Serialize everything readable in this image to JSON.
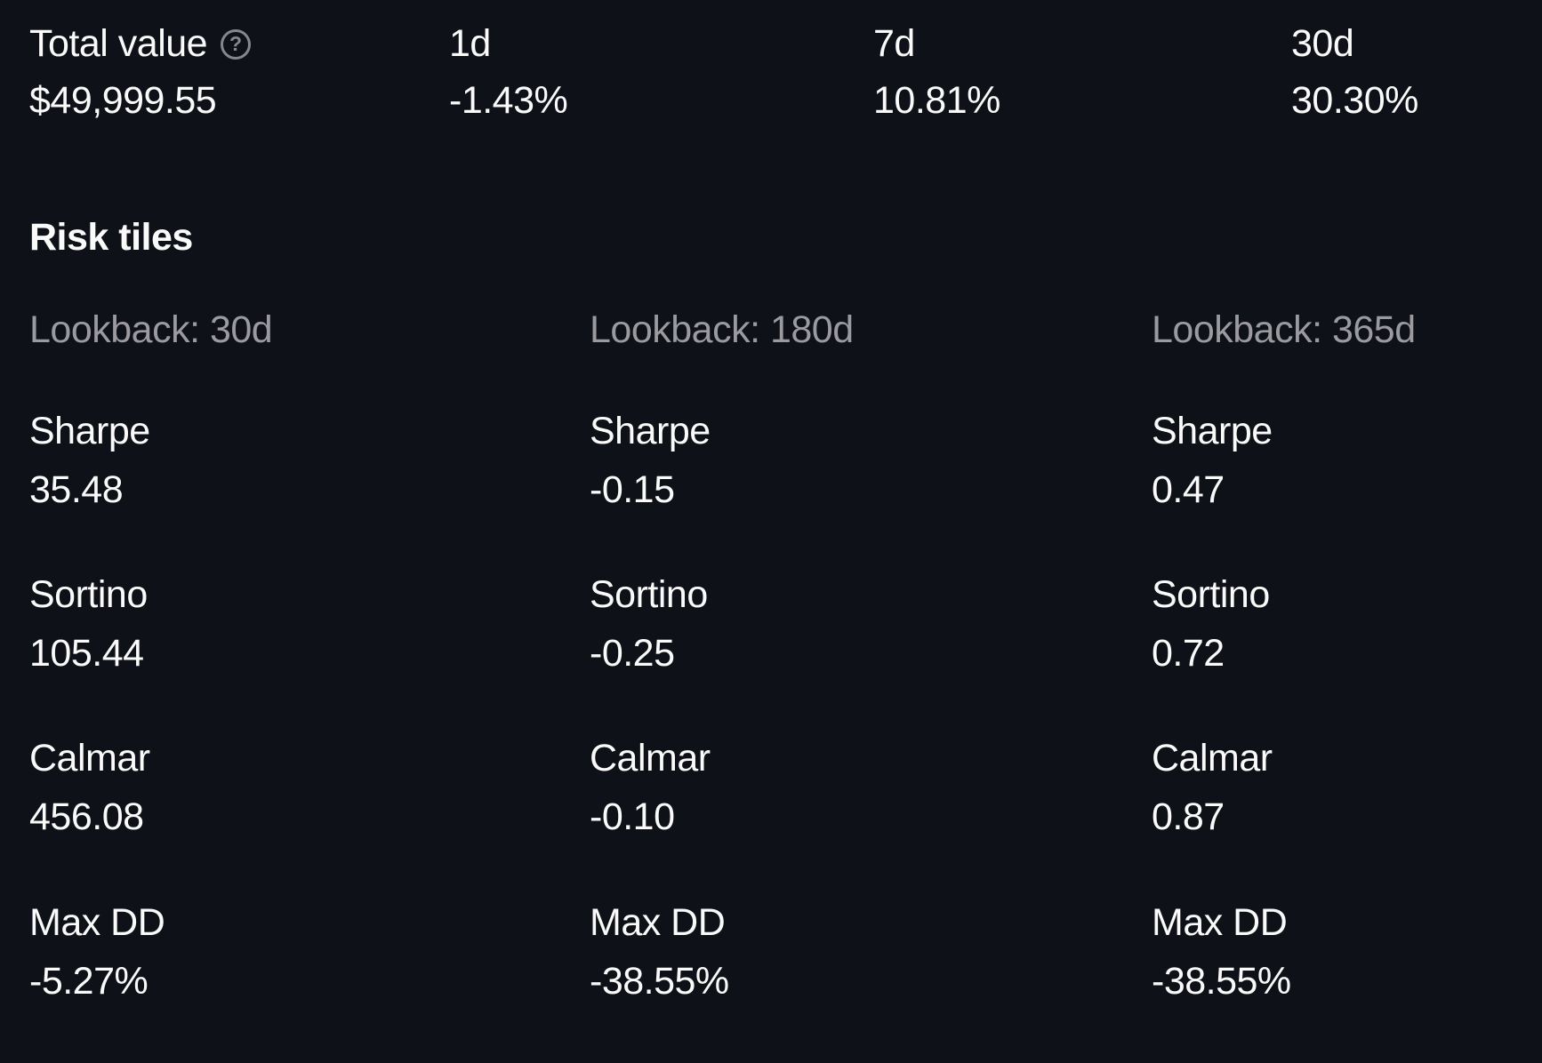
{
  "colors": {
    "background": "#0e1117",
    "text": "#fafafa",
    "muted": "#9a9a9f",
    "help_icon": "#85878c"
  },
  "summary": {
    "help_icon_glyph": "?",
    "cells": [
      {
        "label": "Total value",
        "value": "$49,999.55"
      },
      {
        "label": "1d",
        "value": "-1.43%"
      },
      {
        "label": "7d",
        "value": "10.81%"
      },
      {
        "label": "30d",
        "value": "30.30%"
      }
    ]
  },
  "risk": {
    "heading": "Risk tiles",
    "columns": [
      {
        "lookback": "Lookback: 30d",
        "metrics": [
          {
            "label": "Sharpe",
            "value": "35.48"
          },
          {
            "label": "Sortino",
            "value": "105.44"
          },
          {
            "label": "Calmar",
            "value": "456.08"
          },
          {
            "label": "Max DD",
            "value": "-5.27%"
          }
        ]
      },
      {
        "lookback": "Lookback: 180d",
        "metrics": [
          {
            "label": "Sharpe",
            "value": "-0.15"
          },
          {
            "label": "Sortino",
            "value": "-0.25"
          },
          {
            "label": "Calmar",
            "value": "-0.10"
          },
          {
            "label": "Max DD",
            "value": "-38.55%"
          }
        ]
      },
      {
        "lookback": "Lookback: 365d",
        "metrics": [
          {
            "label": "Sharpe",
            "value": "0.47"
          },
          {
            "label": "Sortino",
            "value": "0.72"
          },
          {
            "label": "Calmar",
            "value": "0.87"
          },
          {
            "label": "Max DD",
            "value": "-38.55%"
          }
        ]
      }
    ]
  }
}
